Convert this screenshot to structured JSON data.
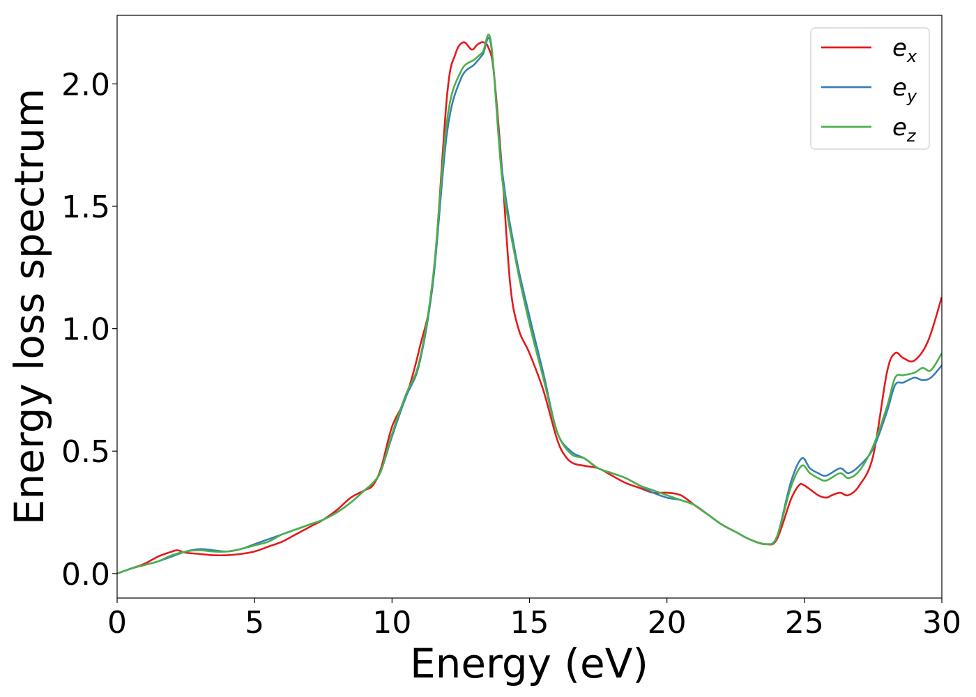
{
  "chart_data": {
    "type": "line",
    "xlabel": "Energy (eV)",
    "ylabel": "Energy loss spectrum",
    "xlim": [
      0,
      30
    ],
    "ylim": [
      -0.1,
      2.28
    ],
    "xticks": [
      0,
      5,
      10,
      15,
      20,
      25,
      30
    ],
    "yticks": [
      0.0,
      0.5,
      1.0,
      1.5,
      2.0
    ],
    "xtick_labels": [
      "0",
      "5",
      "10",
      "15",
      "20",
      "25",
      "30"
    ],
    "ytick_labels": [
      "0.0",
      "0.5",
      "1.0",
      "1.5",
      "2.0"
    ],
    "grid": false,
    "legend_position": "top-right",
    "series": [
      {
        "name": "e",
        "subscript": "x",
        "color": "#e41a1c",
        "x": [
          0,
          0.5,
          1,
          1.5,
          2,
          2.2,
          2.5,
          3,
          3.5,
          4,
          4.5,
          5,
          5.5,
          6,
          6.5,
          7,
          7.5,
          8,
          8.5,
          9,
          9.3,
          9.6,
          10,
          10.5,
          11,
          11.5,
          12,
          12.3,
          12.6,
          12.9,
          13.1,
          13.3,
          13.5,
          13.7,
          14,
          14.3,
          14.6,
          15,
          15.5,
          16,
          16.3,
          16.6,
          17,
          17.5,
          18,
          18.5,
          19,
          19.5,
          20,
          20.5,
          21,
          21.5,
          22,
          22.5,
          23,
          23.6,
          24,
          24.5,
          24.8,
          25,
          25.5,
          25.8,
          26,
          26.3,
          26.6,
          27,
          27.5,
          28,
          28.3,
          28.6,
          29,
          29.5,
          30
        ],
        "y": [
          0.0,
          0.02,
          0.04,
          0.07,
          0.09,
          0.095,
          0.085,
          0.08,
          0.075,
          0.075,
          0.08,
          0.09,
          0.11,
          0.13,
          0.16,
          0.19,
          0.22,
          0.26,
          0.31,
          0.34,
          0.36,
          0.43,
          0.6,
          0.72,
          0.92,
          1.2,
          1.95,
          2.12,
          2.17,
          2.14,
          2.16,
          2.17,
          2.15,
          2.05,
          1.65,
          1.18,
          1.0,
          0.9,
          0.75,
          0.55,
          0.48,
          0.45,
          0.44,
          0.43,
          0.4,
          0.37,
          0.35,
          0.33,
          0.33,
          0.32,
          0.28,
          0.24,
          0.2,
          0.17,
          0.14,
          0.12,
          0.14,
          0.3,
          0.36,
          0.36,
          0.32,
          0.31,
          0.32,
          0.33,
          0.32,
          0.36,
          0.48,
          0.82,
          0.9,
          0.88,
          0.87,
          0.95,
          1.13
        ]
      },
      {
        "name": "e",
        "subscript": "y",
        "color": "#377eb8",
        "x": [
          0,
          0.5,
          1,
          1.5,
          2,
          2.5,
          3,
          3.5,
          4,
          4.5,
          5,
          5.5,
          6,
          6.5,
          7,
          7.5,
          8,
          8.5,
          9,
          9.3,
          9.6,
          10,
          10.5,
          11,
          11.5,
          12,
          12.5,
          13,
          13.3,
          13.6,
          14,
          14.5,
          15,
          15.5,
          16,
          16.5,
          17,
          17.5,
          18,
          18.5,
          19,
          19.5,
          20,
          20.5,
          21,
          21.5,
          22,
          22.5,
          23,
          23.6,
          24,
          24.5,
          24.9,
          25.2,
          25.5,
          25.8,
          26.3,
          26.6,
          27,
          27.5,
          28,
          28.3,
          28.6,
          29,
          29.3,
          29.6,
          30
        ],
        "y": [
          0.0,
          0.02,
          0.035,
          0.05,
          0.07,
          0.09,
          0.1,
          0.095,
          0.09,
          0.1,
          0.12,
          0.14,
          0.16,
          0.18,
          0.2,
          0.22,
          0.25,
          0.29,
          0.34,
          0.37,
          0.42,
          0.56,
          0.72,
          0.86,
          1.2,
          1.8,
          2.02,
          2.08,
          2.12,
          2.16,
          1.65,
          1.3,
          1.05,
          0.82,
          0.58,
          0.5,
          0.47,
          0.43,
          0.41,
          0.39,
          0.36,
          0.33,
          0.31,
          0.3,
          0.28,
          0.24,
          0.2,
          0.17,
          0.14,
          0.12,
          0.15,
          0.37,
          0.47,
          0.43,
          0.41,
          0.4,
          0.43,
          0.41,
          0.44,
          0.51,
          0.66,
          0.77,
          0.78,
          0.8,
          0.79,
          0.8,
          0.85
        ]
      },
      {
        "name": "e",
        "subscript": "z",
        "color": "#4daf4a",
        "x": [
          0,
          0.5,
          1,
          1.5,
          2,
          2.5,
          3,
          3.5,
          4,
          4.5,
          5,
          5.5,
          6,
          6.5,
          7,
          7.5,
          8,
          8.5,
          9,
          9.3,
          9.6,
          10,
          10.5,
          11,
          11.5,
          12,
          12.5,
          13,
          13.3,
          13.6,
          14,
          14.5,
          15,
          15.5,
          16,
          16.5,
          17,
          17.5,
          18,
          18.5,
          19,
          19.5,
          20,
          20.5,
          21,
          21.5,
          22,
          22.5,
          23,
          23.6,
          24,
          24.5,
          24.9,
          25.2,
          25.5,
          25.8,
          26.3,
          26.6,
          27,
          27.5,
          28,
          28.3,
          28.6,
          29,
          29.3,
          29.6,
          30
        ],
        "y": [
          0.0,
          0.02,
          0.035,
          0.05,
          0.075,
          0.09,
          0.095,
          0.09,
          0.09,
          0.1,
          0.115,
          0.13,
          0.16,
          0.18,
          0.2,
          0.22,
          0.25,
          0.29,
          0.34,
          0.37,
          0.42,
          0.57,
          0.73,
          0.87,
          1.22,
          1.85,
          2.05,
          2.1,
          2.13,
          2.17,
          1.62,
          1.28,
          1.02,
          0.8,
          0.58,
          0.49,
          0.47,
          0.43,
          0.41,
          0.39,
          0.36,
          0.34,
          0.32,
          0.3,
          0.28,
          0.24,
          0.2,
          0.17,
          0.14,
          0.12,
          0.15,
          0.35,
          0.44,
          0.41,
          0.39,
          0.38,
          0.41,
          0.39,
          0.42,
          0.52,
          0.68,
          0.8,
          0.81,
          0.82,
          0.84,
          0.83,
          0.9
        ]
      }
    ]
  }
}
